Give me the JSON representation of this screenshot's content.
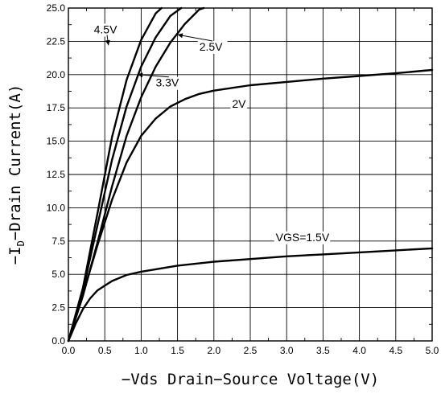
{
  "chart_data": {
    "type": "line",
    "xlabel": "−Vds Drain−Source Voltage(V)",
    "ylabel": "−I",
    "ylabel_sub": "D",
    "ylabel_rest": "−Drain Current(A)",
    "xlim": [
      0,
      5.0
    ],
    "ylim": [
      0,
      25.0
    ],
    "x_ticks": [
      "0.0",
      "0.5",
      "1.0",
      "1.5",
      "2.0",
      "2.5",
      "3.0",
      "3.5",
      "4.0",
      "4.5",
      "5.0"
    ],
    "y_ticks": [
      "0.0",
      "2.5",
      "5.0",
      "7.5",
      "10.0",
      "12.5",
      "15.0",
      "17.5",
      "20.0",
      "22.5",
      "25.0"
    ],
    "grid": true,
    "series": [
      {
        "name": "VGS=1.5V",
        "x": [
          0,
          0.1,
          0.2,
          0.3,
          0.4,
          0.6,
          0.8,
          1.0,
          1.5,
          2.0,
          2.5,
          3.0,
          3.5,
          4.0,
          4.5,
          5.0
        ],
        "y": [
          0,
          1.3,
          2.4,
          3.2,
          3.8,
          4.5,
          4.95,
          5.2,
          5.65,
          5.95,
          6.15,
          6.35,
          6.5,
          6.65,
          6.8,
          6.95
        ]
      },
      {
        "name": "2V",
        "x": [
          0,
          0.2,
          0.4,
          0.6,
          0.8,
          1.0,
          1.2,
          1.4,
          1.6,
          1.8,
          2.0,
          2.5,
          3.0,
          3.5,
          4.0,
          4.5,
          5.0
        ],
        "y": [
          0,
          3.5,
          7.2,
          10.6,
          13.4,
          15.4,
          16.7,
          17.6,
          18.15,
          18.55,
          18.8,
          19.2,
          19.45,
          19.7,
          19.9,
          20.1,
          20.35
        ]
      },
      {
        "name": "3.3V",
        "x": [
          0,
          0.2,
          0.4,
          0.6,
          0.8,
          1.0,
          1.2,
          1.4,
          1.55
        ],
        "y": [
          0,
          3.8,
          8.7,
          13.6,
          17.6,
          20.6,
          22.8,
          24.4,
          25.0
        ]
      },
      {
        "name": "2.5V",
        "x": [
          0,
          0.2,
          0.4,
          0.6,
          0.8,
          1.0,
          1.2,
          1.4,
          1.6,
          1.8,
          1.86
        ],
        "y": [
          0,
          3.4,
          7.4,
          11.6,
          15.4,
          18.3,
          20.6,
          22.4,
          23.8,
          24.9,
          25.0
        ]
      },
      {
        "name": "4.5V",
        "x": [
          0,
          0.2,
          0.4,
          0.6,
          0.8,
          1.0,
          1.2,
          1.28
        ],
        "y": [
          0,
          4.0,
          9.6,
          15.3,
          19.6,
          22.6,
          24.6,
          25.0
        ]
      }
    ],
    "annotations": [
      {
        "text": "4.5V",
        "x": 0.35,
        "y": 23.1,
        "point_x": 0.55,
        "point_y": 22.2
      },
      {
        "text": "2.5V",
        "x": 1.8,
        "y": 21.8,
        "point_x": 1.5,
        "point_y": 23.0
      },
      {
        "text": "3.3V",
        "x": 1.2,
        "y": 19.1,
        "point_x": 0.95,
        "point_y": 20.0
      },
      {
        "text": "2V",
        "x": 2.25,
        "y": 17.5
      },
      {
        "text": "VGS=1.5V",
        "x": 2.85,
        "y": 7.5
      }
    ]
  }
}
